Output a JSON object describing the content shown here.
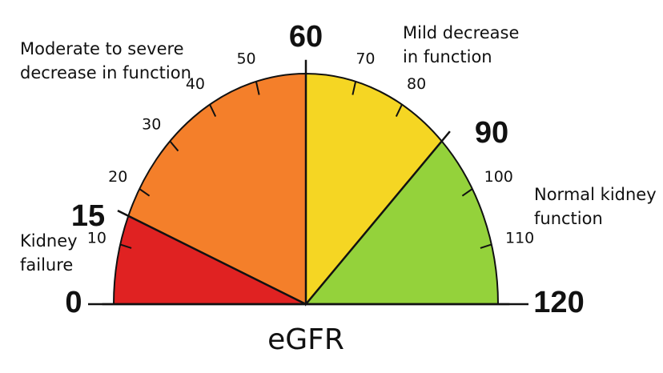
{
  "chart_data": {
    "type": "gauge",
    "xlabel": "eGFR",
    "xlim": [
      0,
      120
    ],
    "major_ticks": [
      0,
      15,
      60,
      90,
      120
    ],
    "minor_ticks": [
      10,
      20,
      30,
      40,
      50,
      70,
      80,
      100,
      110
    ],
    "bands": [
      {
        "from": 0,
        "to": 15,
        "color": "#e02222",
        "label": [
          "Kidney",
          "failure"
        ]
      },
      {
        "from": 15,
        "to": 60,
        "color": "#f47f2a",
        "label": [
          "Moderate to severe",
          "decrease in function"
        ]
      },
      {
        "from": 60,
        "to": 90,
        "color": "#f5d623",
        "label": [
          "Mild decrease",
          "in function"
        ]
      },
      {
        "from": 90,
        "to": 120,
        "color": "#94d23b",
        "label": [
          "Normal kidney",
          "function"
        ]
      }
    ]
  }
}
